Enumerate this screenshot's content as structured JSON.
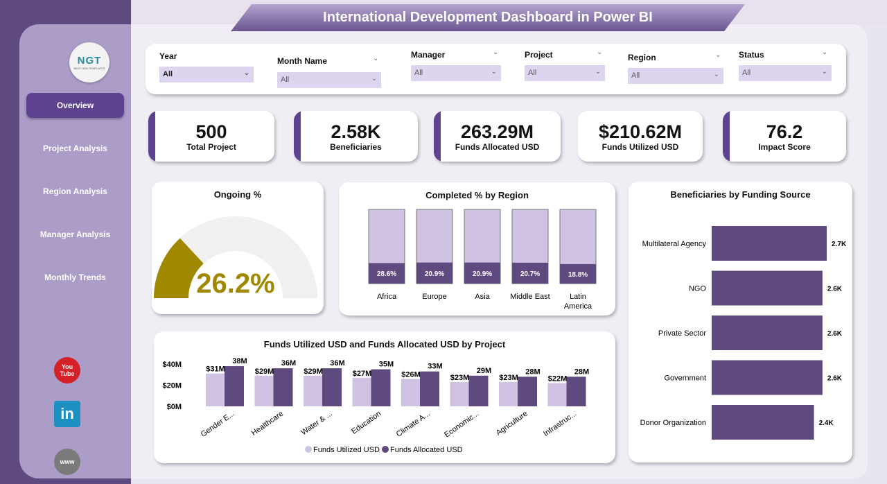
{
  "header": {
    "title": "International Development Dashboard in Power BI"
  },
  "logo": {
    "text": "NGT",
    "subtext": "NEXT GEN TEMPLATES"
  },
  "sidebar": {
    "items": [
      {
        "label": "Overview",
        "active": true
      },
      {
        "label": "Project Analysis"
      },
      {
        "label": "Region Analysis"
      },
      {
        "label": "Manager Analysis"
      },
      {
        "label": "Monthly Trends"
      }
    ],
    "social": [
      {
        "icon": "youtube-icon",
        "text": "You Tube",
        "color": "#d42027"
      },
      {
        "icon": "linkedin-icon",
        "text": "in",
        "color": "#1d8fc0"
      },
      {
        "icon": "globe-icon",
        "text": "www",
        "color": "#7a7a7a"
      }
    ]
  },
  "filters": [
    {
      "label": "Year",
      "value": "All"
    },
    {
      "label": "Month Name",
      "value": "All"
    },
    {
      "label": "Manager",
      "value": "All"
    },
    {
      "label": "Project",
      "value": "All"
    },
    {
      "label": "Region",
      "value": "All"
    },
    {
      "label": "Status",
      "value": "All"
    }
  ],
  "kpis": [
    {
      "value": "500",
      "label": "Total Project"
    },
    {
      "value": "2.58K",
      "label": "Beneficiaries"
    },
    {
      "value": "263.29M",
      "label": "Funds Allocated USD"
    },
    {
      "value": "$210.62M",
      "label": "Funds Utilized USD"
    },
    {
      "value": "76.2",
      "label": "Impact Score"
    }
  ],
  "colors": {
    "dark": "#5e4a7e",
    "light": "#cfc2e2",
    "gauge": "#a08800",
    "gauge_track": "#f0f0f0",
    "accent": "#5e4490"
  },
  "chart_data": [
    {
      "type": "gauge",
      "title": "Ongoing %",
      "value": 26.2,
      "label": "26.2%",
      "range": [
        0,
        100
      ]
    },
    {
      "type": "bar",
      "stacked": "100%",
      "title": "Completed % by Region",
      "categories": [
        "Africa",
        "Europe",
        "Asia",
        "Middle East",
        "Latin America"
      ],
      "values": [
        28.6,
        20.9,
        20.9,
        20.7,
        18.8
      ],
      "labels": [
        "28.6%",
        "20.9%",
        "20.9%",
        "20.7%",
        "18.8%"
      ]
    },
    {
      "type": "bar",
      "orientation": "horizontal",
      "title": "Beneficiaries by Funding Source",
      "categories": [
        "Multilateral Agency",
        "NGO",
        "Private Sector",
        "Government",
        "Donor Organization"
      ],
      "values": [
        2.7,
        2.6,
        2.6,
        2.6,
        2.4
      ],
      "labels": [
        "2.7K",
        "2.6K",
        "2.6K",
        "2.6K",
        "2.4K"
      ]
    },
    {
      "type": "bar",
      "title": "Funds Utilized USD and Funds Allocated USD by Project",
      "categories": [
        "Gender E...",
        "Healthcare",
        "Water & ...",
        "Education",
        "Climate A...",
        "Economic...",
        "Agriculture",
        "Infrastruc..."
      ],
      "series": [
        {
          "name": "Funds Utilized USD",
          "values": [
            31,
            29,
            29,
            27,
            26,
            23,
            23,
            22
          ],
          "labels": [
            "$31M",
            "$29M",
            "$29M",
            "$27M",
            "$26M",
            "$23M",
            "$23M",
            "$22M"
          ]
        },
        {
          "name": "Funds Allocated USD",
          "values": [
            38,
            36,
            36,
            35,
            33,
            29,
            28,
            28
          ],
          "labels": [
            "38M",
            "36M",
            "36M",
            "35M",
            "33M",
            "29M",
            "28M",
            "28M"
          ]
        }
      ],
      "yticks": [
        "$0M",
        "$20M",
        "$40M"
      ],
      "ylim": [
        0,
        40
      ],
      "legend": "bottom"
    }
  ]
}
